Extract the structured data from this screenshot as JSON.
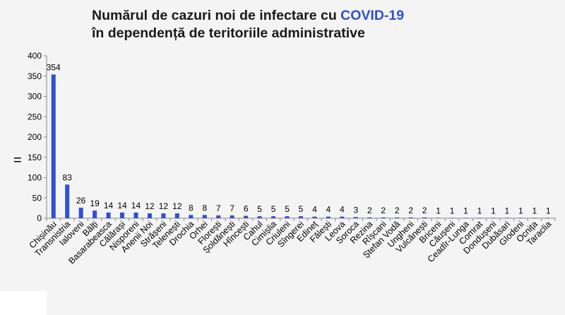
{
  "title": {
    "line1_prefix": "Numărul de cazuri noi de infectare cu ",
    "line1_accent": "COVID-19",
    "line2": "în dependență de teritoriile administrative"
  },
  "side_mark": "=",
  "colors": {
    "bar": "#2f4fd6",
    "accent": "#2f4fd6",
    "panel": "#f4f4f4"
  },
  "chart_data": {
    "type": "bar",
    "title": "Numărul de cazuri noi de infectare cu COVID-19 în dependență de teritoriile administrative",
    "xlabel": "",
    "ylabel": "",
    "ylim": [
      0,
      400
    ],
    "yticks": [
      0,
      50,
      100,
      150,
      200,
      250,
      300,
      350,
      400
    ],
    "grid": false,
    "legend": "none",
    "categories": [
      "Chișinău",
      "Transnistria",
      "Ialoveni",
      "Bălți",
      "Basarabeasca",
      "Călărași",
      "Nisporeni",
      "Anenii Noi",
      "Strășeni",
      "Telenești",
      "Drochia",
      "Orhei",
      "Florești",
      "Șoldănești",
      "Hîncești",
      "Cahul",
      "Cimișlia",
      "Criuleni",
      "Sîngerei",
      "Edineț",
      "Fălești",
      "Leova",
      "Soroca",
      "Rezina",
      "Rîșcani",
      "Ștefan Vodă",
      "Ungheni",
      "Vulcănești",
      "Briceni",
      "Căușeni",
      "Ceadîr-Lunga",
      "Comrat",
      "Dondușeni",
      "Dubăsari",
      "Glodeni",
      "Ocnița",
      "Taraclia"
    ],
    "values": [
      354,
      83,
      26,
      19,
      14,
      14,
      14,
      12,
      12,
      12,
      8,
      8,
      7,
      7,
      6,
      5,
      5,
      5,
      5,
      4,
      4,
      4,
      3,
      2,
      2,
      2,
      2,
      2,
      1,
      1,
      1,
      1,
      1,
      1,
      1,
      1,
      1
    ]
  }
}
